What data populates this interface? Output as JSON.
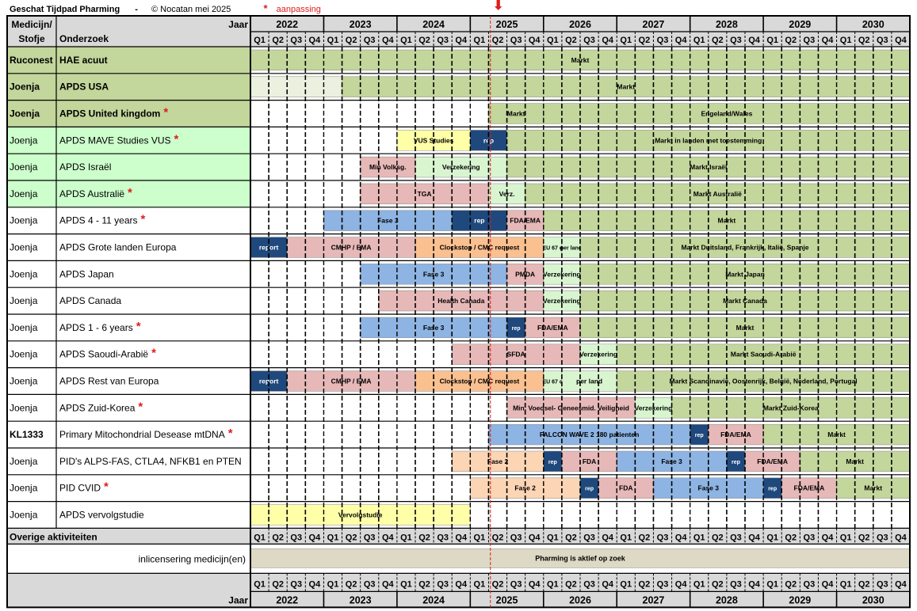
{
  "header": {
    "title": "Geschat Tijdpad Pharming",
    "separator": "-",
    "copyright": "© Nocatan mei 2025",
    "star": "*",
    "star_legend": "aanpassing"
  },
  "table": {
    "col_medicine": "Medicijn/",
    "col_medicine2": "Stofje",
    "col_study": "Onderzoek",
    "year_label": "Jaar",
    "years": [
      "2022",
      "2023",
      "2024",
      "2025",
      "2026",
      "2027",
      "2028",
      "2029",
      "2030"
    ],
    "quarters": [
      "Q1",
      "Q2",
      "Q3",
      "Q4"
    ],
    "other_label": "Overige aktiviteiten"
  },
  "chart_data": {
    "type": "gantt",
    "time_axis": {
      "start": "2022 Q1",
      "end": "2030 Q4",
      "unit": "quarter"
    },
    "today_marker": "2025 Q2",
    "rows": [
      {
        "medicine": "Ruconest",
        "study": "HAE acuut",
        "bold": true,
        "band": "olive",
        "star": false,
        "bars": [
          {
            "label": "Markt",
            "start": "2022 Q1",
            "end": "2030 Q4",
            "color": "#c3d69b"
          }
        ]
      },
      {
        "medicine": "Joenja",
        "study": "APDS USA",
        "bold": true,
        "band": "olive",
        "star": false,
        "bars": [
          {
            "label": "",
            "start": "2022 Q1",
            "end": "2023 Q2",
            "color": "#ebf1de"
          },
          {
            "label": "Markt",
            "start": "2023 Q2",
            "end": "2030 Q4",
            "color": "#c3d69b"
          }
        ]
      },
      {
        "medicine": "Joenja",
        "study": "APDS United kingdom",
        "bold": true,
        "band": "olive",
        "star": true,
        "bars": [
          {
            "label": "Markt",
            "start": "2025 Q2",
            "end": "2026 Q1",
            "color": "#c3d69b"
          },
          {
            "label": "Engeland/Wales",
            "start": "2026 Q1",
            "end": "2030 Q4",
            "color": "#c3d69b"
          }
        ]
      },
      {
        "medicine": "Joenja",
        "study": "APDS MAVE Studies VUS",
        "bold": false,
        "band": "green",
        "star": true,
        "bars": [
          {
            "label": "VUS Studies",
            "start": "2024 Q1",
            "end": "2025 Q1",
            "color": "#ffffa8"
          },
          {
            "label": "rep",
            "start": "2025 Q1",
            "end": "2025 Q3",
            "color": "#1f497d"
          },
          {
            "label": "Markt in landen met toestemming",
            "start": "2025 Q3",
            "end": "2030 Q4",
            "color": "#c3d69b"
          }
        ]
      },
      {
        "medicine": "Joenja",
        "study": "APDS Israël",
        "bold": false,
        "band": "green",
        "star": false,
        "bars": [
          {
            "label": "Min Volksg.",
            "start": "2023 Q3",
            "end": "2024 Q2",
            "color": "#e6b8b7"
          },
          {
            "label": "Verzekering",
            "start": "2024 Q2",
            "end": "2025 Q3",
            "color": "#d8f5d0"
          },
          {
            "label": "Markt Israël",
            "start": "2025 Q3",
            "end": "2030 Q4",
            "color": "#c3d69b"
          }
        ]
      },
      {
        "medicine": "Joenja",
        "study": "APDS Australië",
        "bold": false,
        "band": "green",
        "star": true,
        "bars": [
          {
            "label": "TGA",
            "start": "2023 Q3",
            "end": "2025 Q2",
            "color": "#e6b8b7"
          },
          {
            "label": "Verz.",
            "start": "2025 Q2",
            "end": "2025 Q4",
            "color": "#d8f5d0"
          },
          {
            "label": "Markt Australië",
            "start": "2025 Q4",
            "end": "2030 Q4",
            "color": "#c3d69b"
          }
        ]
      },
      {
        "medicine": "Joenja",
        "study": "APDS 4 - 11 years",
        "bold": false,
        "band": "white",
        "star": true,
        "bars": [
          {
            "label": "Fase 3",
            "start": "2023 Q1",
            "end": "2024 Q4",
            "color": "#8db4e2"
          },
          {
            "label": "rep",
            "start": "2024 Q4",
            "end": "2025 Q3",
            "color": "#1f497d"
          },
          {
            "label": "FDA/EMA",
            "start": "2025 Q3",
            "end": "2026 Q1",
            "color": "#e6b8b7"
          },
          {
            "label": "Markt",
            "start": "2026 Q1",
            "end": "2030 Q4",
            "color": "#c3d69b"
          }
        ]
      },
      {
        "medicine": "Joenja",
        "study": "APDS Grote landen Europa",
        "bold": false,
        "band": "white",
        "star": false,
        "bars": [
          {
            "label": "report",
            "start": "2022 Q1",
            "end": "2022 Q3",
            "color": "#1f497d"
          },
          {
            "label": "CMHP / EMA",
            "start": "2022 Q3",
            "end": "2024 Q2",
            "color": "#e6b8b7"
          },
          {
            "label": "Clockstop / CMC request",
            "start": "2024 Q2",
            "end": "2026 Q1",
            "color": "#fac08f"
          },
          {
            "label": "EU 67 d",
            "start": "2026 Q1",
            "end": "2026 Q2",
            "color": "#d8f5d0"
          },
          {
            "label": "per land",
            "start": "2026 Q2",
            "end": "2026 Q3",
            "color": "#d8f5d0"
          },
          {
            "label": "Markt Duitsland, Frankrijk, Italië, Spanje",
            "start": "2026 Q3",
            "end": "2030 Q4",
            "color": "#c3d69b"
          }
        ]
      },
      {
        "medicine": "Joenja",
        "study": "APDS Japan",
        "bold": false,
        "band": "white",
        "star": false,
        "bars": [
          {
            "label": "Fase 3",
            "start": "2023 Q3",
            "end": "2025 Q3",
            "color": "#8db4e2"
          },
          {
            "label": "PMDA",
            "start": "2025 Q3",
            "end": "2026 Q1",
            "color": "#e6b8b7"
          },
          {
            "label": "Verzekering",
            "start": "2026 Q1",
            "end": "2026 Q3",
            "color": "#d8f5d0"
          },
          {
            "label": "Markt Japan",
            "start": "2026 Q3",
            "end": "2030 Q4",
            "color": "#c3d69b"
          }
        ]
      },
      {
        "medicine": "Joenja",
        "study": "APDS Canada",
        "bold": false,
        "band": "white",
        "star": false,
        "bars": [
          {
            "label": "Health Canada",
            "start": "2023 Q4",
            "end": "2026 Q1",
            "color": "#e6b8b7"
          },
          {
            "label": "Verzekering",
            "start": "2026 Q1",
            "end": "2026 Q3",
            "color": "#d8f5d0"
          },
          {
            "label": "Markt Canada",
            "start": "2026 Q3",
            "end": "2030 Q4",
            "color": "#c3d69b"
          }
        ]
      },
      {
        "medicine": "Joenja",
        "study": "APDS 1 - 6 years",
        "bold": false,
        "band": "white",
        "star": true,
        "bars": [
          {
            "label": "Fase 3",
            "start": "2023 Q3",
            "end": "2025 Q3",
            "color": "#8db4e2"
          },
          {
            "label": "rep",
            "start": "2025 Q3",
            "end": "2025 Q4",
            "color": "#1f497d"
          },
          {
            "label": "FDA/EMA",
            "start": "2025 Q4",
            "end": "2026 Q3",
            "color": "#e6b8b7"
          },
          {
            "label": "Markt",
            "start": "2026 Q3",
            "end": "2030 Q4",
            "color": "#c3d69b"
          }
        ]
      },
      {
        "medicine": "Joenja",
        "study": "APDS Saoudi-Arabië",
        "bold": false,
        "band": "white",
        "star": true,
        "bars": [
          {
            "label": "SFDA",
            "start": "2024 Q4",
            "end": "2026 Q3",
            "color": "#e6b8b7"
          },
          {
            "label": "Verzekering",
            "start": "2026 Q3",
            "end": "2027 Q1",
            "color": "#d8f5d0"
          },
          {
            "label": "Markt Saoudi-Arabië",
            "start": "2027 Q1",
            "end": "2030 Q4",
            "color": "#c3d69b"
          }
        ]
      },
      {
        "medicine": "Joenja",
        "study": "APDS Rest van Europa",
        "bold": false,
        "band": "white",
        "star": false,
        "bars": [
          {
            "label": "report",
            "start": "2022 Q1",
            "end": "2022 Q3",
            "color": "#1f497d"
          },
          {
            "label": "CMHP / EMA",
            "start": "2022 Q3",
            "end": "2024 Q2",
            "color": "#e6b8b7"
          },
          {
            "label": "Clockstop / CMC request",
            "start": "2024 Q2",
            "end": "2026 Q1",
            "color": "#fac08f"
          },
          {
            "label": "EU 67 d",
            "start": "2026 Q1",
            "end": "2026 Q2",
            "color": "#d8f5d0"
          },
          {
            "label": "per land",
            "start": "2026 Q2",
            "end": "2027 Q1",
            "color": "#d8f5d0"
          },
          {
            "label": "Markt Scandinavië, Oostenrijk, België, Nederland, Portugal",
            "start": "2027 Q1",
            "end": "2030 Q4",
            "color": "#c3d69b"
          }
        ]
      },
      {
        "medicine": "Joenja",
        "study": "APDS Zuid-Korea",
        "bold": false,
        "band": "white",
        "star": true,
        "bars": [
          {
            "label": "Min. Voedsel- Geneesmid. Veiligheid",
            "start": "2025 Q3",
            "end": "2027 Q2",
            "color": "#e6b8b7"
          },
          {
            "label": "Verzekering",
            "start": "2027 Q2",
            "end": "2027 Q4",
            "color": "#d8f5d0"
          },
          {
            "label": "Markt Zuid-Korea",
            "start": "2027 Q4",
            "end": "2030 Q4",
            "color": "#c3d69b"
          }
        ]
      },
      {
        "medicine": "KL1333",
        "study": "Primary Mitochondrial Desease mtDNA",
        "bold": false,
        "band": "white",
        "star": true,
        "bars": [
          {
            "label": "FALCON WAVE 2 180 patienten",
            "start": "2025 Q2",
            "end": "2028 Q1",
            "color": "#8db4e2"
          },
          {
            "label": "rep",
            "start": "2028 Q1",
            "end": "2028 Q2",
            "color": "#1f497d"
          },
          {
            "label": "FDA/EMA",
            "start": "2028 Q2",
            "end": "2029 Q1",
            "color": "#e6b8b7"
          },
          {
            "label": "Markt",
            "start": "2029 Q1",
            "end": "2030 Q4",
            "color": "#c3d69b"
          }
        ]
      },
      {
        "medicine": "Joenja",
        "study": "PID's ALPS-FAS, CTLA4, NFKB1 en PTEN",
        "bold": false,
        "band": "white",
        "star": false,
        "bars": [
          {
            "label": "Fase 2",
            "start": "2024 Q4",
            "end": "2026 Q1",
            "color": "#fcd5b4"
          },
          {
            "label": "rep",
            "start": "2026 Q1",
            "end": "2026 Q2",
            "color": "#1f497d"
          },
          {
            "label": "FDA",
            "start": "2026 Q2",
            "end": "2027 Q1",
            "color": "#e6b8b7"
          },
          {
            "label": "Fase 3",
            "start": "2027 Q1",
            "end": "2028 Q3",
            "color": "#8db4e2"
          },
          {
            "label": "rep",
            "start": "2028 Q3",
            "end": "2028 Q4",
            "color": "#1f497d"
          },
          {
            "label": "FDA/EMA",
            "start": "2028 Q4",
            "end": "2029 Q3",
            "color": "#e6b8b7"
          },
          {
            "label": "Markt",
            "start": "2029 Q3",
            "end": "2030 Q4",
            "color": "#c3d69b"
          }
        ]
      },
      {
        "medicine": "Joenja",
        "study": "PID CVID",
        "bold": false,
        "band": "white",
        "star": true,
        "bars": [
          {
            "label": "Fase 2",
            "start": "2025 Q1",
            "end": "2026 Q3",
            "color": "#fcd5b4"
          },
          {
            "label": "rep",
            "start": "2026 Q3",
            "end": "2026 Q4",
            "color": "#1f497d"
          },
          {
            "label": "FDA",
            "start": "2026 Q4",
            "end": "2027 Q3",
            "color": "#e6b8b7"
          },
          {
            "label": "Fase 3",
            "start": "2027 Q3",
            "end": "2029 Q1",
            "color": "#8db4e2"
          },
          {
            "label": "rep",
            "start": "2029 Q1",
            "end": "2029 Q2",
            "color": "#1f497d"
          },
          {
            "label": "FDA/EMA",
            "start": "2029 Q2",
            "end": "2030 Q1",
            "color": "#e6b8b7"
          },
          {
            "label": "Markt",
            "start": "2030 Q1",
            "end": "2030 Q4",
            "color": "#c3d69b"
          }
        ]
      },
      {
        "medicine": "Joenja",
        "study": "APDS vervolgstudie",
        "bold": false,
        "band": "white",
        "star": false,
        "bars": [
          {
            "label": "Vervolgstudie",
            "start": "2022 Q1",
            "end": "2025 Q1",
            "color": "#ffffa8"
          }
        ]
      }
    ],
    "other": [
      {
        "study": "inlicensering medicijn(en)",
        "bars": [
          {
            "label": "Pharming is aktief op zoek",
            "start": "2022 Q1",
            "end": "2030 Q4",
            "color": "#ddd9c4"
          }
        ]
      }
    ]
  }
}
